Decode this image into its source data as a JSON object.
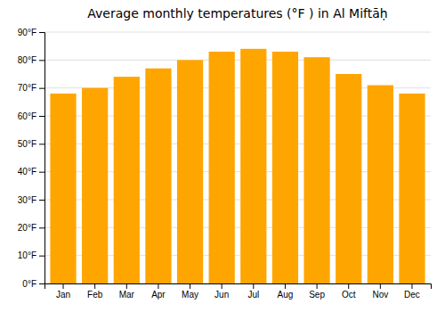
{
  "chart_data": {
    "type": "bar",
    "title": "Average monthly temperatures (°F ) in Al Miftāḥ",
    "categories": [
      "Jan",
      "Feb",
      "Mar",
      "Apr",
      "May",
      "Jun",
      "Jul",
      "Aug",
      "Sep",
      "Oct",
      "Nov",
      "Dec"
    ],
    "values": [
      68,
      70,
      74,
      77,
      80,
      83,
      84,
      83,
      81,
      75,
      71,
      68
    ],
    "color": "#FFA500",
    "ylim": [
      0,
      90
    ],
    "yticks": [
      {
        "value": 0,
        "label": "0°F"
      },
      {
        "value": 10,
        "label": "10°F"
      },
      {
        "value": 20,
        "label": "20°F"
      },
      {
        "value": 30,
        "label": "30°F"
      },
      {
        "value": 40,
        "label": "40°F"
      },
      {
        "value": 50,
        "label": "50°F"
      },
      {
        "value": 60,
        "label": "60°F"
      },
      {
        "value": 70,
        "label": "70°F"
      },
      {
        "value": 80,
        "label": "80°F"
      },
      {
        "value": 90,
        "label": "90°F"
      }
    ],
    "grid": true
  }
}
